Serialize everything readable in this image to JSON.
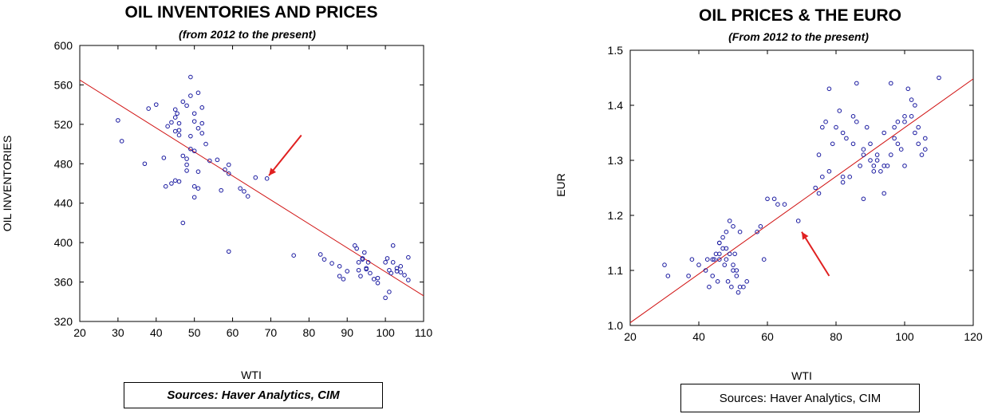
{
  "chart_data": [
    {
      "type": "scatter",
      "title": "OIL INVENTORIES AND PRICES",
      "subtitle": "(from 2012 to the present)",
      "xlabel": "WTI",
      "ylabel": "OIL INVENTORIES",
      "xlim": [
        20,
        110
      ],
      "ylim": [
        320,
        600
      ],
      "xticks": [
        20,
        30,
        40,
        50,
        60,
        70,
        80,
        90,
        100,
        110
      ],
      "yticks": [
        320,
        360,
        400,
        440,
        480,
        520,
        560,
        600
      ],
      "grid": false,
      "point_color": "#1a1aa0",
      "fit_line": {
        "color": "#d01010",
        "x": [
          20,
          110
        ],
        "y": [
          565,
          346
        ]
      },
      "arrow": {
        "color": "#e02020",
        "from": [
          78,
          509
        ],
        "to": [
          69.5,
          468
        ]
      },
      "x": [
        30,
        31,
        37,
        38,
        40,
        42,
        42.5,
        43,
        44,
        45,
        45.5,
        46,
        46,
        47,
        48,
        49,
        50,
        51,
        52,
        53,
        45,
        46,
        47,
        48,
        49,
        50,
        51,
        45,
        46,
        49,
        50,
        51,
        52,
        48,
        50,
        52,
        54,
        56,
        58,
        59,
        48,
        49,
        44,
        45,
        47,
        50,
        51,
        57,
        59,
        62,
        63,
        64,
        66,
        69,
        59,
        76,
        83,
        84,
        86,
        88,
        90,
        92,
        92.5,
        93,
        93.5,
        94,
        94.5,
        95,
        95.5,
        96,
        97,
        98,
        100,
        101,
        102,
        103,
        104,
        105,
        106,
        93,
        94,
        95,
        98,
        100,
        101,
        102,
        103,
        104,
        106,
        100.5,
        101.5,
        89,
        88
      ],
      "y": [
        524,
        503,
        480,
        536,
        540,
        486,
        457,
        518,
        522,
        535,
        531,
        514,
        462,
        420,
        473,
        508,
        457,
        472,
        521,
        500,
        513,
        509,
        543,
        539,
        549,
        531,
        516,
        527,
        521,
        568,
        523,
        552,
        537,
        479,
        493,
        511,
        483,
        484,
        474,
        470,
        485,
        495,
        460,
        463,
        488,
        446,
        455,
        453,
        479,
        455,
        452,
        447,
        466,
        465,
        391,
        387,
        388,
        383,
        379,
        376,
        371,
        397,
        394,
        372,
        366,
        384,
        390,
        373,
        380,
        369,
        363,
        359,
        344,
        350,
        380,
        374,
        370,
        367,
        385,
        380,
        383,
        374,
        364,
        380,
        372,
        397,
        371,
        376,
        362,
        384,
        369,
        363,
        366
      ]
    },
    {
      "type": "scatter",
      "title": "OIL PRICES & THE EURO",
      "subtitle": "(From 2012 to the present)",
      "xlabel": "WTI",
      "ylabel": "EUR",
      "xlim": [
        20,
        120
      ],
      "ylim": [
        1.0,
        1.5
      ],
      "xticks": [
        20,
        40,
        60,
        80,
        100,
        120
      ],
      "yticks": [
        "1.0",
        "1.1",
        "1.2",
        "1.3",
        "1.4",
        "1.5"
      ],
      "grid": false,
      "point_color": "#1a1aa0",
      "fit_line": {
        "color": "#d01010",
        "x": [
          20,
          120
        ],
        "y": [
          1.005,
          1.448
        ]
      },
      "arrow": {
        "color": "#e02020",
        "from": [
          78,
          1.09
        ],
        "to": [
          70,
          1.17
        ]
      },
      "x": [
        30,
        31,
        37,
        38,
        40,
        42,
        42.5,
        43,
        44,
        44.5,
        45,
        45.5,
        46,
        46,
        47,
        47.5,
        48,
        48.5,
        49,
        49.5,
        50,
        50.5,
        51,
        51.5,
        52,
        53,
        54,
        44,
        46,
        48,
        50,
        52,
        46,
        47,
        48,
        49,
        50,
        51,
        57,
        58,
        59,
        60,
        62,
        63,
        65,
        69,
        74,
        75,
        76,
        77,
        78,
        80,
        81,
        82,
        83,
        84,
        85,
        86,
        87,
        88,
        89,
        90,
        91,
        92,
        93,
        94,
        95,
        96,
        97,
        98,
        99,
        100,
        101,
        102,
        103,
        104,
        105,
        106,
        110,
        75,
        78,
        82,
        86,
        88,
        90,
        92,
        94,
        96,
        98,
        100,
        102,
        104,
        106,
        76,
        79,
        82,
        85,
        88,
        91,
        94,
        97,
        100,
        103
      ],
      "y": [
        1.11,
        1.09,
        1.09,
        1.12,
        1.11,
        1.1,
        1.12,
        1.07,
        1.09,
        1.12,
        1.13,
        1.08,
        1.13,
        1.12,
        1.16,
        1.11,
        1.14,
        1.08,
        1.19,
        1.07,
        1.1,
        1.13,
        1.09,
        1.06,
        1.07,
        1.07,
        1.08,
        1.12,
        1.15,
        1.17,
        1.18,
        1.17,
        1.15,
        1.14,
        1.12,
        1.13,
        1.11,
        1.1,
        1.17,
        1.18,
        1.12,
        1.23,
        1.23,
        1.22,
        1.22,
        1.19,
        1.25,
        1.31,
        1.27,
        1.37,
        1.43,
        1.36,
        1.39,
        1.26,
        1.34,
        1.27,
        1.38,
        1.44,
        1.29,
        1.23,
        1.36,
        1.3,
        1.29,
        1.31,
        1.28,
        1.35,
        1.29,
        1.31,
        1.36,
        1.37,
        1.32,
        1.29,
        1.43,
        1.41,
        1.4,
        1.36,
        1.31,
        1.34,
        1.45,
        1.24,
        1.28,
        1.35,
        1.37,
        1.31,
        1.33,
        1.3,
        1.24,
        1.44,
        1.33,
        1.37,
        1.38,
        1.33,
        1.32,
        1.36,
        1.33,
        1.27,
        1.33,
        1.32,
        1.28,
        1.29,
        1.34,
        1.38,
        1.35
      ]
    }
  ],
  "sources": {
    "left": "Sources:  Haver Analytics, CIM",
    "right": "Sources:  Haver Analytics, CIM"
  }
}
